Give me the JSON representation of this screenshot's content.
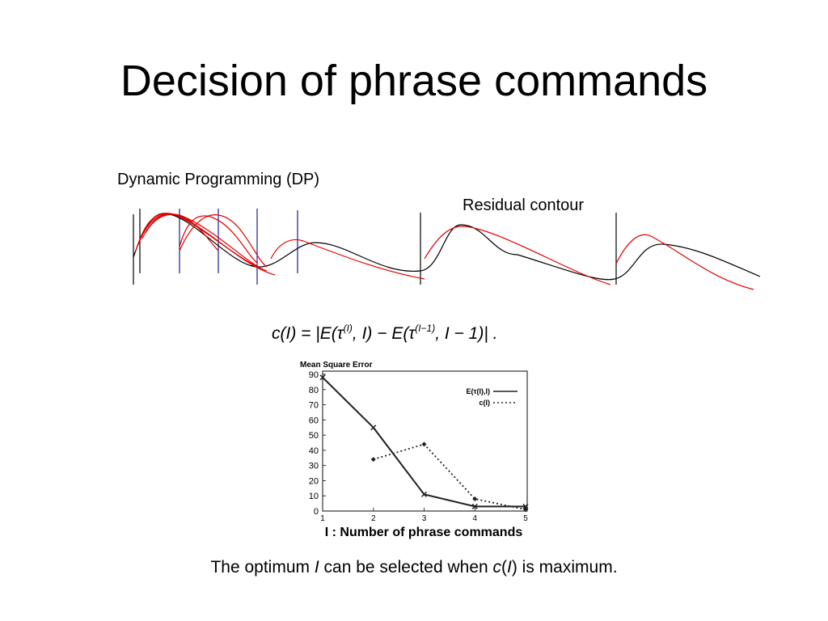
{
  "slide_title": "Decision of phrase commands",
  "diagram": {
    "label_dp": "Dynamic Programming (DP)",
    "label_residual": "Residual contour"
  },
  "formula": [
    "c(I) = |E(τ",
    "(I)",
    ", I) − E(τ",
    "(I−1)",
    ", I − 1)| ."
  ],
  "caption": [
    "The optimum ",
    "I",
    " can be selected when ",
    "c",
    "(",
    "I",
    ") is maximum."
  ],
  "chart_data": {
    "type": "line",
    "title": "Mean Square Error",
    "x_label": "I : Number of phrase commands",
    "x": [
      1,
      2,
      3,
      4,
      5
    ],
    "xlim": [
      1,
      5
    ],
    "xticks": [
      1,
      2,
      3,
      4,
      5
    ],
    "ylim": [
      0,
      90
    ],
    "yticks": [
      0,
      10,
      20,
      30,
      40,
      50,
      60,
      70,
      80,
      90
    ],
    "series": [
      {
        "name": "E(τ(I),I)",
        "color": "#222222",
        "dash": "solid",
        "values": [
          88,
          55,
          11,
          3,
          3
        ]
      },
      {
        "name": "c(I)",
        "color": "#222222",
        "dash": "dotted",
        "values": [
          null,
          34,
          44,
          8,
          1
        ]
      }
    ],
    "legend": "top-right"
  }
}
